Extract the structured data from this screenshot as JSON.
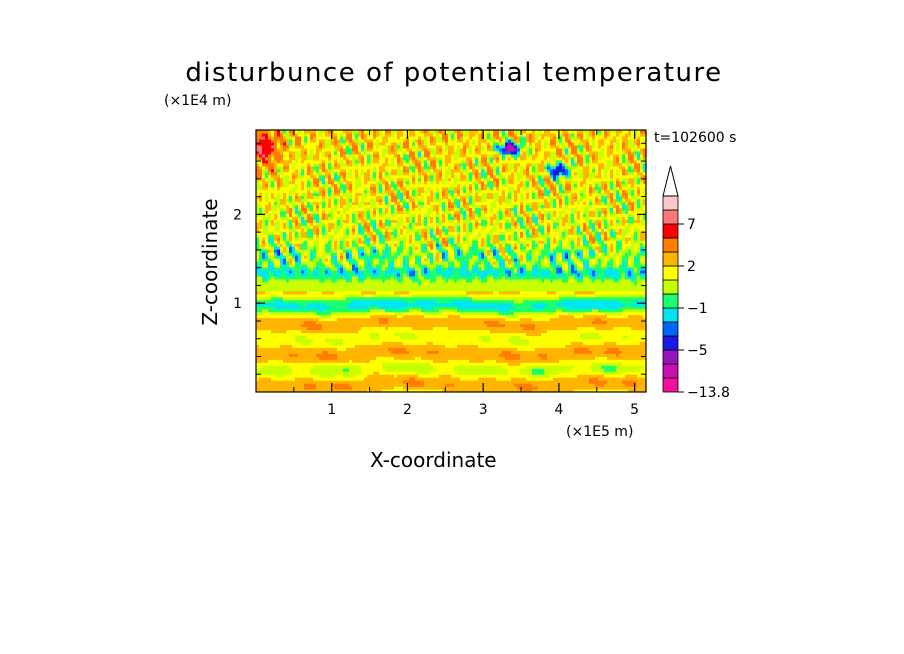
{
  "chart_data": {
    "type": "heatmap",
    "title": "disturbunce of potential temperature",
    "xlabel": "X-coordinate",
    "ylabel": "Z-coordinate",
    "x_scale_label": "(×1E5 m)",
    "z_scale_label": "(×1E4 m)",
    "time_label": "t=102600 s",
    "x_ticks": [
      "1",
      "2",
      "3",
      "4",
      "5"
    ],
    "y_ticks": [
      "1",
      "2"
    ],
    "xlim": [
      0,
      5.15
    ],
    "ylim": [
      0,
      2.95
    ],
    "colorbar": {
      "labels": [
        "7",
        "2",
        "−1",
        "−5",
        "−13.8"
      ],
      "label_values": [
        7,
        2,
        -1,
        -5,
        -13.8
      ],
      "levels": [
        -13.8,
        -9,
        -7,
        -5,
        -3,
        -2,
        -1,
        0,
        1,
        2,
        3,
        5,
        7,
        9,
        12
      ],
      "colors": [
        "#f50fa0",
        "#c80fb4",
        "#9614be",
        "#1a1ae6",
        "#0064ff",
        "#00e6f0",
        "#19ff6e",
        "#c8ff00",
        "#ffff00",
        "#ffb400",
        "#ff7d00",
        "#ff0000",
        "#ff7878",
        "#ffc8c8"
      ],
      "overflow_color": "#ffffff"
    }
  }
}
